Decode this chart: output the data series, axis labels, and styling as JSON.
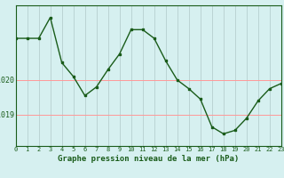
{
  "x": [
    0,
    1,
    2,
    3,
    4,
    5,
    6,
    7,
    8,
    9,
    10,
    11,
    12,
    13,
    14,
    15,
    16,
    17,
    18,
    19,
    20,
    21,
    22,
    23
  ],
  "y": [
    1021.2,
    1021.2,
    1021.2,
    1021.8,
    1020.5,
    1020.1,
    1019.55,
    1019.8,
    1020.3,
    1020.75,
    1021.45,
    1021.45,
    1021.2,
    1020.55,
    1020.0,
    1019.75,
    1019.45,
    1018.65,
    1018.45,
    1018.55,
    1018.9,
    1019.4,
    1019.75,
    1019.9
  ],
  "line_color": "#1a5c1a",
  "marker_color": "#1a5c1a",
  "bg_color": "#d6f0f0",
  "grid_color_v": "#b0c8c8",
  "grid_color_h": "#ff9999",
  "ylabel_ticks": [
    1019,
    1020
  ],
  "xlabel": "Graphe pression niveau de la mer (hPa)",
  "xlim": [
    0,
    23
  ],
  "ylim": [
    1018.1,
    1022.15
  ],
  "figwidth": 3.2,
  "figheight": 2.0,
  "dpi": 100
}
